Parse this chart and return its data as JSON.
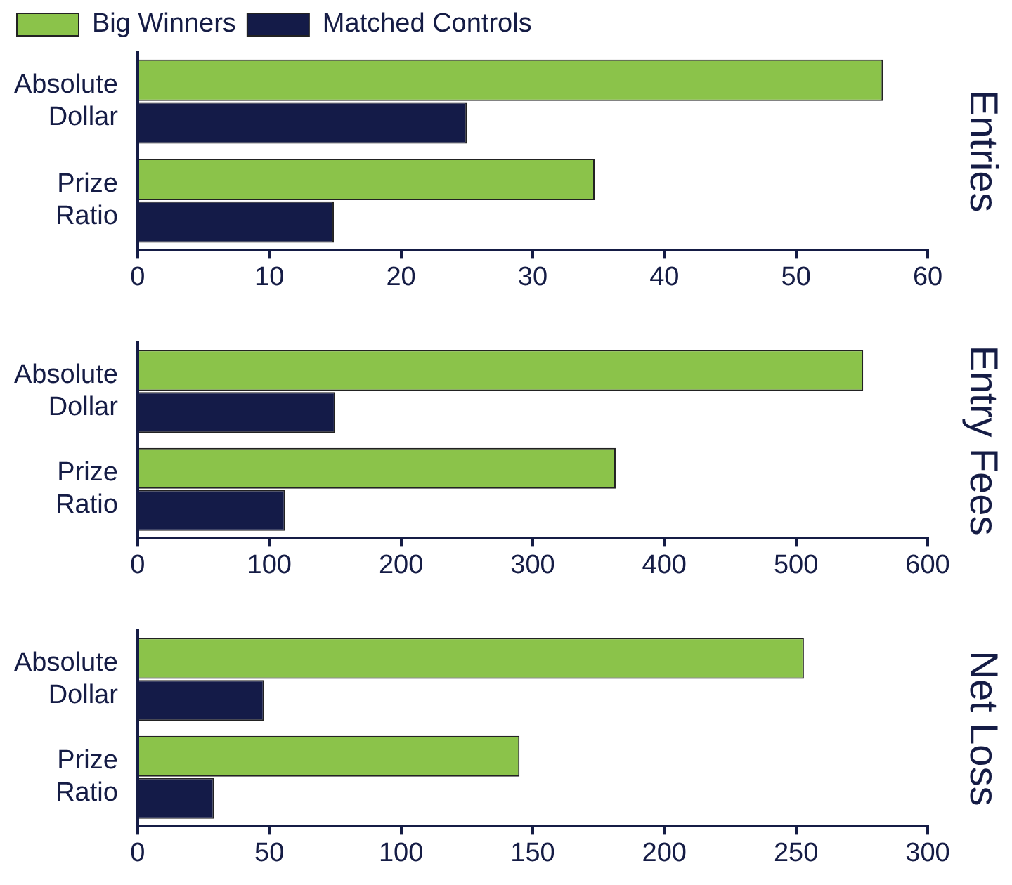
{
  "chart_data": [
    {
      "type": "bar",
      "orientation": "horizontal",
      "ylabel": "Entries",
      "categories": [
        "Absolute Dollar",
        "Prize Ratio"
      ],
      "legend": "top left",
      "grid": false,
      "series": [
        {
          "name": "Big Winners",
          "color": "#8bc34a",
          "values": [
            56.6,
            34.7
          ]
        },
        {
          "name": "Matched Controls",
          "color": "#141b48",
          "values": [
            25,
            14.9
          ]
        }
      ],
      "xlim": [
        0,
        60
      ],
      "xticks": [
        0,
        10,
        20,
        30,
        40,
        50,
        60
      ]
    },
    {
      "type": "bar",
      "orientation": "horizontal",
      "ylabel": "Entry Fees",
      "categories": [
        "Absolute Dollar",
        "Prize Ratio"
      ],
      "legend": false,
      "grid": false,
      "series": [
        {
          "color": "#8bc34a",
          "values": [
            551,
            363
          ]
        },
        {
          "color": "#141b48",
          "values": [
            150,
            112
          ]
        }
      ],
      "xlim": [
        0,
        600
      ],
      "xticks": [
        0,
        100,
        200,
        300,
        400,
        500,
        600
      ]
    },
    {
      "type": "bar",
      "orientation": "horizontal",
      "ylabel": "Net Loss",
      "categories": [
        "Absolute Dollar",
        "Prize Ratio"
      ],
      "legend": false,
      "grid": false,
      "series": [
        {
          "color": "#8bc34a",
          "values": [
            253,
            145
          ]
        },
        {
          "color": "#141b48",
          "values": [
            48,
            29
          ]
        }
      ],
      "xlim": [
        0,
        300
      ],
      "xticks": [
        0,
        50,
        100,
        150,
        200,
        250,
        300
      ]
    }
  ]
}
